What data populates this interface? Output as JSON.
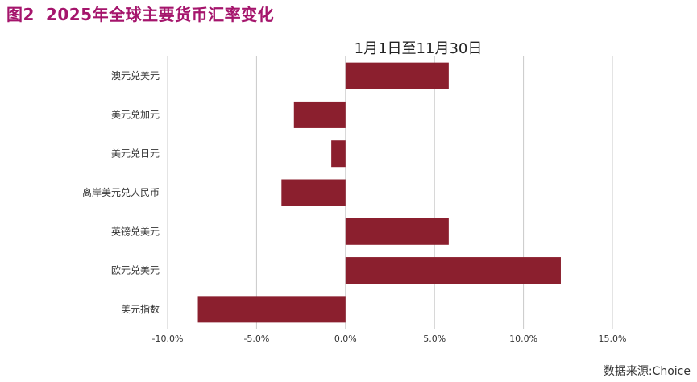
{
  "figure": {
    "number": "图2",
    "title": "2025年全球主要货币汇率变化",
    "source": "数据来源:Choice"
  },
  "chart_data": {
    "type": "bar",
    "orientation": "horizontal",
    "title": "1月1日至11月30日",
    "categories": [
      "澳元兑美元",
      "美元兑加元",
      "美元兑日元",
      "离岸美元兑人民币",
      "英镑兑美元",
      "欧元兑美元",
      "美元指数"
    ],
    "values": [
      5.8,
      -2.9,
      -0.8,
      -3.6,
      5.8,
      12.1,
      -8.3
    ],
    "xlim": [
      -10,
      15
    ],
    "xticks": [
      "-10.0%",
      "-5.0%",
      "0.0%",
      "5.0%",
      "10.0%",
      "15.0%"
    ],
    "xtick_values": [
      -10,
      -5,
      0,
      5,
      10,
      15
    ],
    "bar_color": "#8b1f2e",
    "grid": true
  }
}
